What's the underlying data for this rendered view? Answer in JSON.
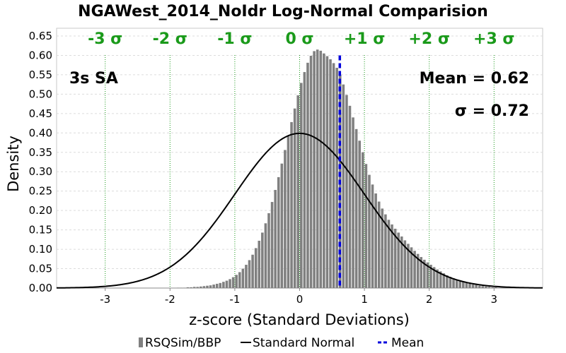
{
  "chart_data": {
    "type": "bar",
    "title": "NGAWest_2014_NoIdr Log-Normal Comparision",
    "xlabel": "z-score (Standard Deviations)",
    "ylabel": "Density",
    "xlim": [
      -3.75,
      3.75
    ],
    "ylim": [
      0,
      0.67
    ],
    "xticks": [
      -3,
      -2,
      -1,
      0,
      1,
      2,
      3
    ],
    "yticks": [
      0.0,
      0.05,
      0.1,
      0.15,
      0.2,
      0.25,
      0.3,
      0.35,
      0.4,
      0.45,
      0.5,
      0.55,
      0.6,
      0.65
    ],
    "ytick_labels": [
      "0.00",
      "0.05",
      "0.10",
      "0.15",
      "0.20",
      "0.25",
      "0.30",
      "0.35",
      "0.40",
      "0.45",
      "0.50",
      "0.55",
      "0.60",
      "0.65"
    ],
    "grid": true,
    "legend_position": "bottom",
    "sigma_lines": {
      "positions": [
        -3,
        -2,
        -1,
        0,
        1,
        2,
        3
      ],
      "labels": [
        "-3 σ",
        "-2 σ",
        "-1 σ",
        "0 σ",
        "+1 σ",
        "+2 σ",
        "+3 σ"
      ],
      "color": "#1a9a1a"
    },
    "annotations": {
      "period": "3s SA",
      "mean": "Mean = 0.62",
      "sigma": "σ = 0.72"
    },
    "mean_value": 0.62,
    "series": [
      {
        "name": "RSQSim/BBP",
        "kind": "histogram",
        "color": "#808080",
        "bin_width": 0.05,
        "bins_start": [
          -1.9,
          -1.85,
          -1.8,
          -1.75,
          -1.7,
          -1.65,
          -1.6,
          -1.55,
          -1.5,
          -1.45,
          -1.4,
          -1.35,
          -1.3,
          -1.25,
          -1.2,
          -1.15,
          -1.1,
          -1.05,
          -1.0,
          -0.95,
          -0.9,
          -0.85,
          -0.8,
          -0.75,
          -0.7,
          -0.65,
          -0.6,
          -0.55,
          -0.5,
          -0.45,
          -0.4,
          -0.35,
          -0.3,
          -0.25,
          -0.2,
          -0.15,
          -0.1,
          -0.05,
          0.0,
          0.05,
          0.1,
          0.15,
          0.2,
          0.25,
          0.3,
          0.35,
          0.4,
          0.45,
          0.5,
          0.55,
          0.6,
          0.65,
          0.7,
          0.75,
          0.8,
          0.85,
          0.9,
          0.95,
          1.0,
          1.05,
          1.1,
          1.15,
          1.2,
          1.25,
          1.3,
          1.35,
          1.4,
          1.45,
          1.5,
          1.55,
          1.6,
          1.65,
          1.7,
          1.75,
          1.8,
          1.85,
          1.9,
          1.95,
          2.0,
          2.05,
          2.1,
          2.15,
          2.2,
          2.25,
          2.3,
          2.35,
          2.4,
          2.45,
          2.5,
          2.55,
          2.6,
          2.65,
          2.7,
          2.75,
          2.8,
          2.85,
          2.9,
          2.95,
          3.0,
          3.05,
          3.1,
          3.15
        ],
        "values": [
          0.001,
          0.001,
          0.001,
          0.002,
          0.002,
          0.003,
          0.003,
          0.004,
          0.005,
          0.006,
          0.007,
          0.009,
          0.011,
          0.013,
          0.016,
          0.019,
          0.023,
          0.028,
          0.034,
          0.041,
          0.05,
          0.06,
          0.072,
          0.086,
          0.103,
          0.122,
          0.143,
          0.167,
          0.193,
          0.222,
          0.253,
          0.286,
          0.321,
          0.356,
          0.392,
          0.428,
          0.463,
          0.497,
          0.529,
          0.557,
          0.581,
          0.599,
          0.611,
          0.615,
          0.612,
          0.605,
          0.598,
          0.59,
          0.58,
          0.568,
          0.55,
          0.525,
          0.498,
          0.47,
          0.44,
          0.41,
          0.38,
          0.35,
          0.32,
          0.292,
          0.267,
          0.244,
          0.223,
          0.205,
          0.19,
          0.176,
          0.164,
          0.153,
          0.143,
          0.133,
          0.123,
          0.114,
          0.105,
          0.096,
          0.088,
          0.08,
          0.073,
          0.066,
          0.06,
          0.054,
          0.048,
          0.043,
          0.038,
          0.033,
          0.029,
          0.025,
          0.022,
          0.019,
          0.016,
          0.013,
          0.011,
          0.009,
          0.008,
          0.006,
          0.005,
          0.004,
          0.003,
          0.002,
          0.002,
          0.001,
          0.001,
          0.001
        ]
      },
      {
        "name": "Standard Normal",
        "kind": "curve",
        "color": "#000000",
        "mu": 0,
        "sd": 1
      },
      {
        "name": "Mean",
        "kind": "vline",
        "color": "#0000dd",
        "x": 0.62
      }
    ]
  }
}
